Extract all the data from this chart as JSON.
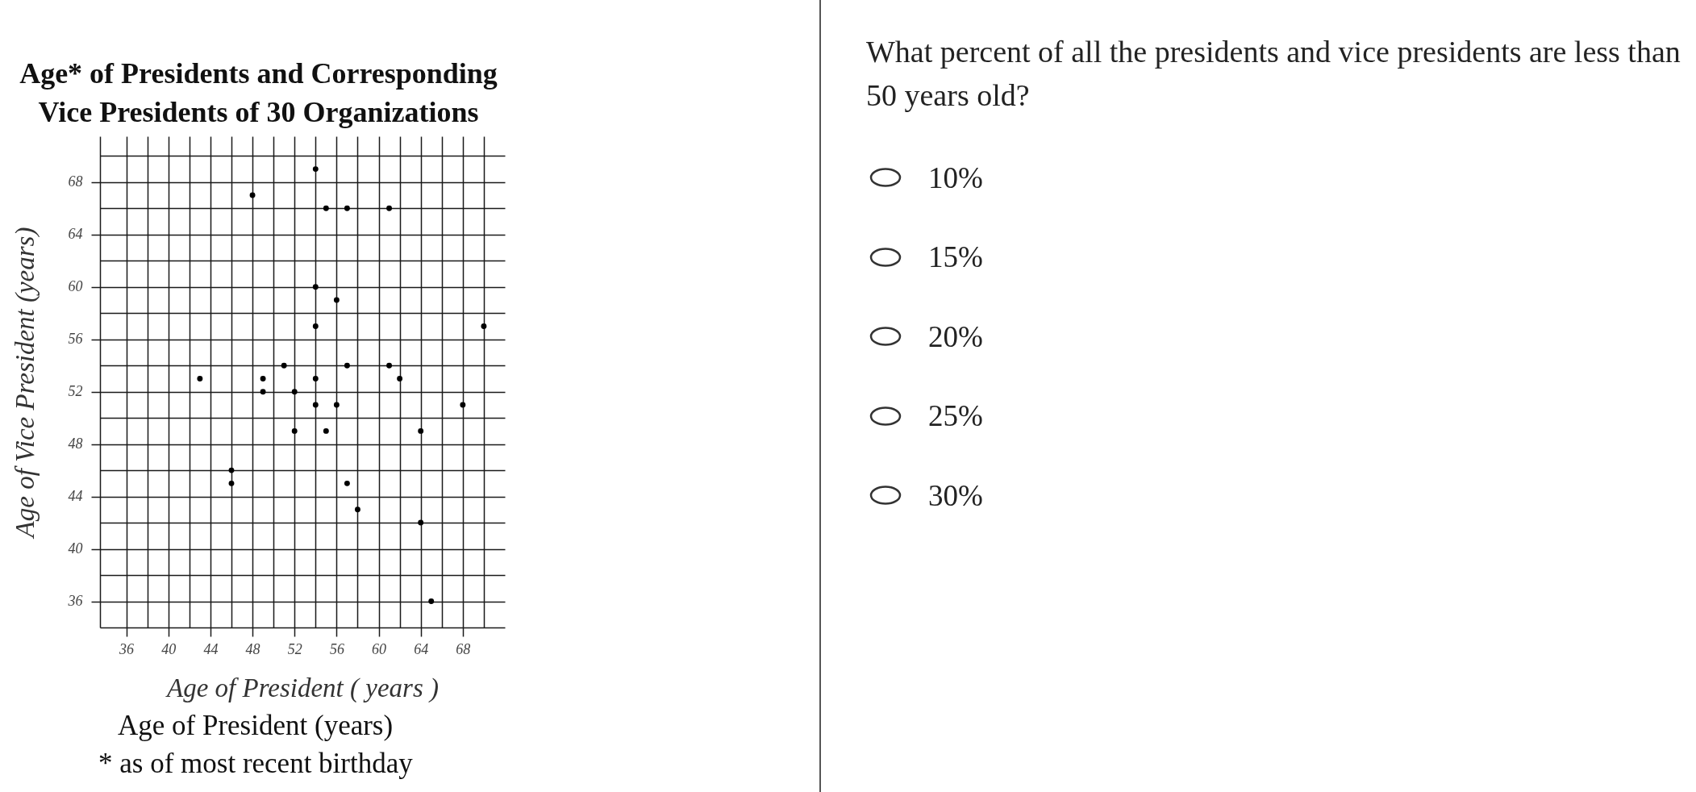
{
  "chart_data": {
    "type": "scatter",
    "title": "Age* of Presidents and Corresponding Vice Presidents of 30 Organizations",
    "xlabel": "Age of President ( years )",
    "ylabel": "Age of Vice President (years)",
    "annotations": [
      "Age of President (years)",
      "* as of most recent birthday",
      "What percent of all the presidents and vice presidents are less than 50 years old?",
      "10%",
      "15%",
      "20%",
      "25%",
      "30%"
    ],
    "x": [
      43,
      46,
      46,
      48,
      49,
      49,
      51,
      52,
      52,
      54,
      54,
      54,
      54,
      54,
      55,
      55,
      56,
      56,
      57,
      57,
      57,
      58,
      61,
      61,
      62,
      64,
      64,
      65,
      68,
      70
    ],
    "values": [
      53,
      46,
      45,
      67,
      53,
      52,
      54,
      52,
      49,
      69,
      60,
      57,
      53,
      51,
      66,
      49,
      59,
      51,
      66,
      54,
      45,
      43,
      66,
      54,
      53,
      49,
      42,
      36,
      51,
      57
    ],
    "color": "#000000",
    "marker": "circle",
    "xlim": [
      33.5,
      72
    ],
    "ylim": [
      34,
      71.5
    ],
    "xticks": [
      36,
      {
        "value": 38,
        "label": null
      },
      40,
      {
        "value": 42,
        "label": null
      },
      44,
      {
        "value": 46,
        "label": null
      },
      48,
      {
        "value": 50,
        "label": null
      },
      52,
      {
        "value": 54,
        "label": null
      },
      56,
      {
        "value": 58,
        "label": null
      },
      60,
      {
        "value": 62,
        "label": null
      },
      64,
      {
        "value": 66,
        "label": null
      },
      68,
      {
        "value": 70,
        "label": null
      }
    ],
    "yticks": [
      36,
      {
        "value": 38,
        "label": null
      },
      40,
      {
        "value": 42,
        "label": null
      },
      44,
      {
        "value": 46,
        "label": null
      },
      48,
      {
        "value": 50,
        "label": null
      },
      52,
      {
        "value": 54,
        "label": null
      },
      56,
      {
        "value": 58,
        "label": null
      },
      60,
      {
        "value": 62,
        "label": null
      },
      64,
      {
        "value": 66,
        "label": null
      },
      68,
      {
        "value": 70,
        "label": null
      }
    ],
    "grid": true
  }
}
